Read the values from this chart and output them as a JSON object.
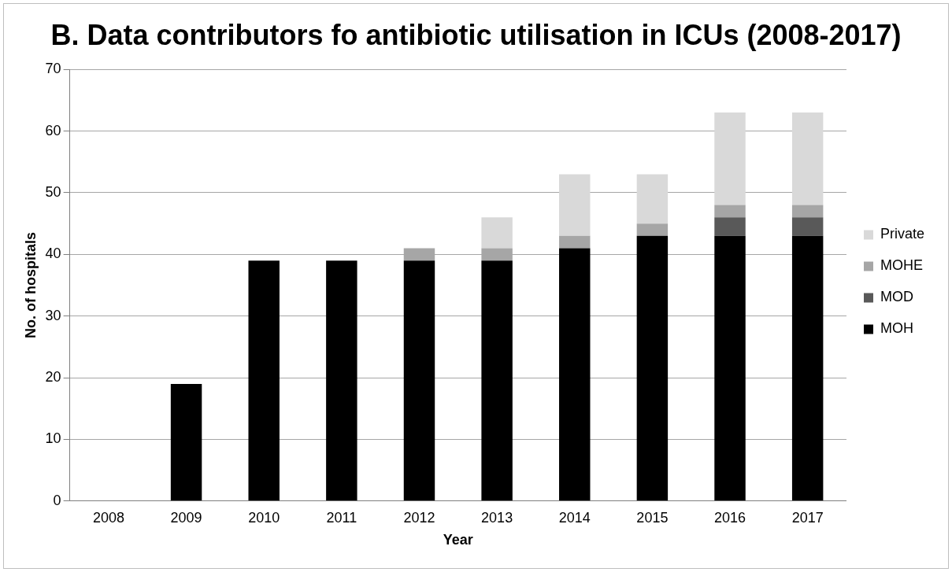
{
  "chart_data": {
    "type": "bar",
    "title": "B. Data contributors fo antibiotic utilisation in ICUs (2008-2017)",
    "xlabel": "Year",
    "ylabel": "No. of hospitals",
    "categories": [
      "2008",
      "2009",
      "2010",
      "2011",
      "2012",
      "2013",
      "2014",
      "2015",
      "2016",
      "2017"
    ],
    "series": [
      {
        "name": "MOH",
        "color": "#000000",
        "values": [
          0,
          19,
          39,
          39,
          39,
          39,
          41,
          43,
          43,
          43
        ]
      },
      {
        "name": "MOD",
        "color": "#595959",
        "values": [
          0,
          0,
          0,
          0,
          0,
          0,
          0,
          0,
          3,
          3
        ]
      },
      {
        "name": "MOHE",
        "color": "#a6a6a6",
        "values": [
          0,
          0,
          0,
          0,
          2,
          2,
          2,
          2,
          2,
          2
        ]
      },
      {
        "name": "Private",
        "color": "#d9d9d9",
        "values": [
          0,
          0,
          0,
          0,
          0,
          5,
          10,
          8,
          15,
          15
        ]
      }
    ],
    "stacked": true,
    "ylim": [
      0,
      70
    ],
    "yticks": [
      0,
      10,
      20,
      30,
      40,
      50,
      60,
      70
    ],
    "grid": "y",
    "legend": "right"
  }
}
